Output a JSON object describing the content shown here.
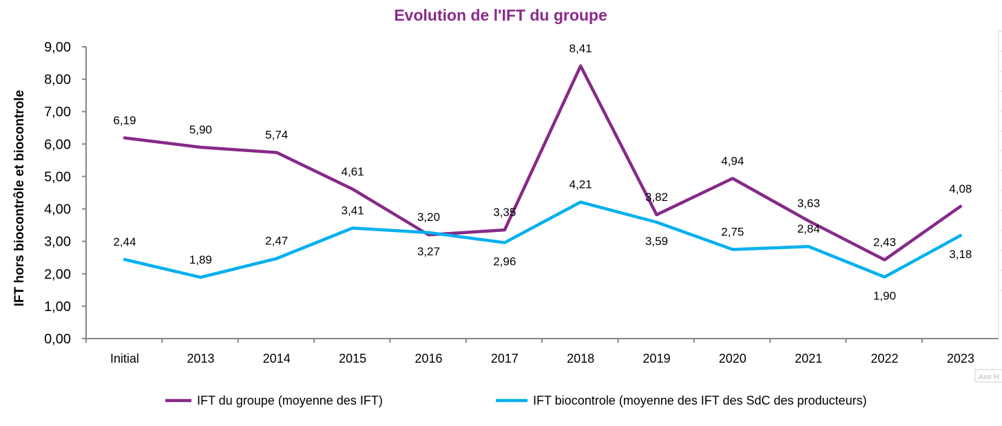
{
  "chart_data": {
    "type": "line",
    "title": "Evolution de l'IFT du groupe",
    "xlabel": "",
    "ylabel": "IFT  hors biocontrôle et biocontrole",
    "ylim": [
      0,
      9
    ],
    "yticks": [
      "0,00",
      "1,00",
      "2,00",
      "3,00",
      "4,00",
      "5,00",
      "6,00",
      "7,00",
      "8,00",
      "9,00"
    ],
    "grid": false,
    "legend_position": "bottom",
    "categories": [
      "Initial",
      "2013",
      "2014",
      "2015",
      "2016",
      "2017",
      "2018",
      "2019",
      "2020",
      "2021",
      "2022",
      "2023"
    ],
    "series": [
      {
        "name": "IFT du groupe (moyenne des IFT)",
        "color": "#862A88",
        "values": [
          6.19,
          5.9,
          5.74,
          4.61,
          3.2,
          3.35,
          8.41,
          3.82,
          4.94,
          3.63,
          2.43,
          4.08
        ],
        "labels": [
          "6,19",
          "5,90",
          "5,74",
          "4,61",
          "3,20",
          "3,35",
          "8,41",
          "3,82",
          "4,94",
          "3,63",
          "2,43",
          "4,08"
        ]
      },
      {
        "name": "IFT biocontrole (moyenne des IFT des SdC des producteurs)",
        "color": "#00B0F0",
        "values": [
          2.44,
          1.89,
          2.47,
          3.41,
          3.27,
          2.96,
          4.21,
          3.59,
          2.75,
          2.84,
          1.9,
          3.18
        ],
        "labels": [
          "2,44",
          "1,89",
          "2,47",
          "3,41",
          "3,27",
          "2,96",
          "4,21",
          "3,59",
          "2,75",
          "2,84",
          "1,90",
          "3,18"
        ]
      }
    ],
    "tooltip": "Axe H"
  }
}
